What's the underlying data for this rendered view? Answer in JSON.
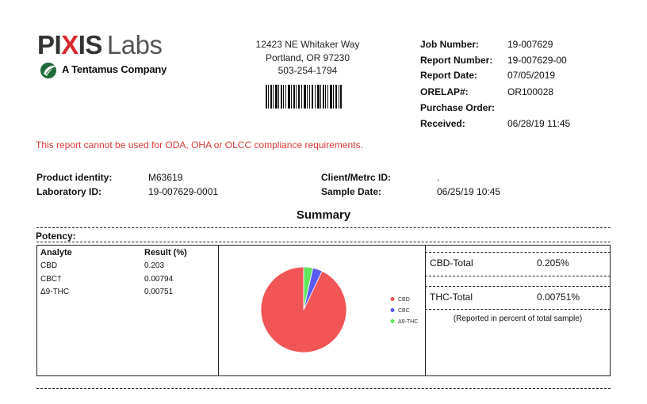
{
  "logo": {
    "brand_part1": "PI",
    "brand_x": "X",
    "brand_part2": "IS",
    "brand_labs": "Labs",
    "tagline": "A Tentamus Company"
  },
  "lab_address": {
    "street": "12423 NE Whitaker Way",
    "city": "Portland, OR 97230",
    "phone": "503-254-1794"
  },
  "job_info": [
    {
      "label": "Job Number:",
      "value": "19-007629"
    },
    {
      "label": "Report Number:",
      "value": "19-007629-00"
    },
    {
      "label": "Report Date:",
      "value": "07/05/2019"
    },
    {
      "label": "ORELAP#:",
      "value": "OR100028"
    },
    {
      "label": "Purchase Order:",
      "value": ""
    },
    {
      "label": "Received:",
      "value": "06/28/19  11:45"
    }
  ],
  "notice": "This report cannot be used for ODA, OHA or OLCC compliance requirements.",
  "product": {
    "identity_label": "Product identity:",
    "identity_value": "M63619",
    "lab_id_label": "Laboratory ID:",
    "lab_id_value": "19-007629-0001",
    "client_label": "Client/Metrc ID:",
    "client_value": ".",
    "sample_date_label": "Sample Date:",
    "sample_date_value": "06/25/19  10:45"
  },
  "summary_title": "Summary",
  "potency_label": "Potency:",
  "potency_table": {
    "headers": [
      "Analyte",
      "Result (%)"
    ],
    "rows": [
      {
        "analyte": "CBD",
        "result": "0.203"
      },
      {
        "analyte": "CBC†",
        "result": "0.00794"
      },
      {
        "analyte": "Δ9-THC",
        "result": "0.00751"
      }
    ]
  },
  "chart_data": {
    "type": "pie",
    "categories": [
      "CBD",
      "CBC",
      "Δ9-THC"
    ],
    "values": [
      0.203,
      0.00794,
      0.00751
    ],
    "colors": [
      "#f25555",
      "#5a5af2",
      "#5ee65e"
    ],
    "legend_position": "right"
  },
  "totals": {
    "cbd_label": "CBD-Total",
    "cbd_value": "0.205%",
    "thc_label": "THC-Total",
    "thc_value": "0.00751%",
    "note": "(Reported in percent of total sample)"
  }
}
